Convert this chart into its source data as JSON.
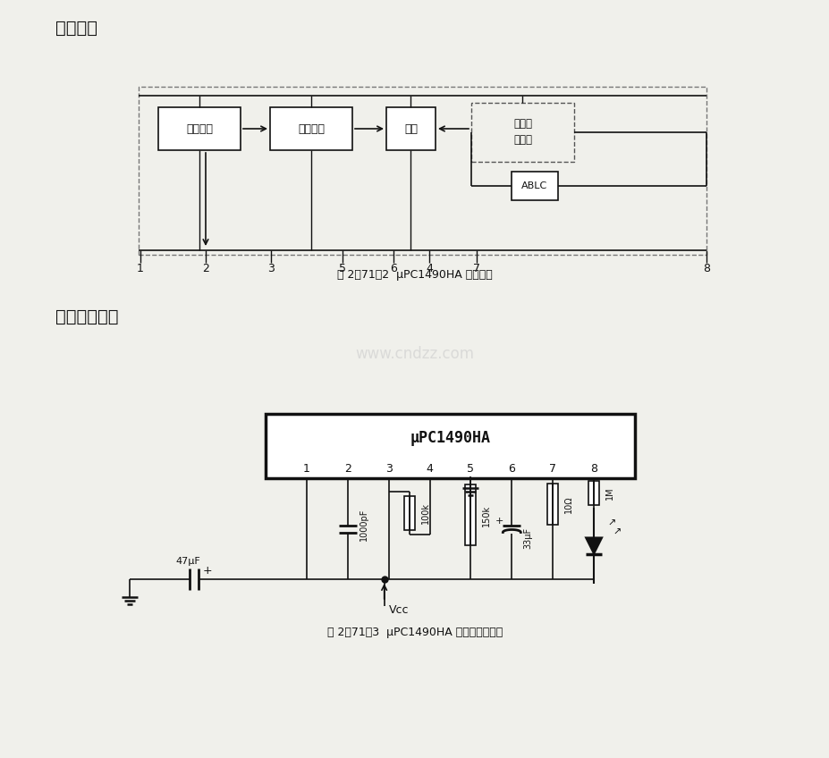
{
  "title1": "逻辑框图",
  "title2": "典型应用电路",
  "fig1_caption": "图 2－71－2  μPC1490HA 逻辑框图",
  "fig2_caption": "图 2－71－3  μPC1490HA 典型应用电路图",
  "watermark": "www.cndzz.com",
  "bg_color": "#f0f0eb",
  "blk": "#111111",
  "ic_label": "μPC1490HA",
  "block1": "整形电路",
  "block2": "检测电路",
  "block3": "带通",
  "block4a": "限幅放",
  "block4b": "大电路",
  "block5": "ABLC",
  "pin_seq": [
    "1",
    "2",
    "3",
    "5",
    "6",
    "4",
    "7",
    "8"
  ],
  "comp_1000pF": "1000pF",
  "comp_100k": "100k",
  "comp_150k": "150k",
  "comp_33uF": "33μF",
  "comp_10": "10",
  "comp_1M": "1M",
  "comp_47uF": "47μF",
  "comp_vcc": "Vcc"
}
